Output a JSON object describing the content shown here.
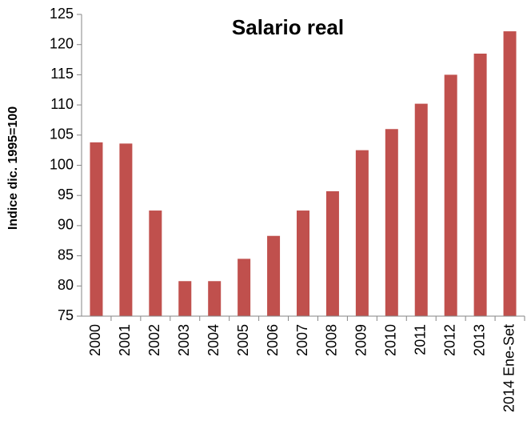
{
  "chart_data": {
    "type": "bar",
    "title": "Salario real",
    "y_label": "Indice dic. 1995=100",
    "categories": [
      "2000",
      "2001",
      "2002",
      "2003",
      "2004",
      "2005",
      "2006",
      "2007",
      "2008",
      "2009",
      "2010",
      "2011",
      "2012",
      "2013",
      "2014 Ene-Set"
    ],
    "values": [
      103.8,
      103.6,
      92.5,
      80.8,
      80.8,
      84.5,
      88.3,
      92.5,
      95.7,
      102.5,
      106.0,
      110.2,
      115.0,
      118.5,
      122.2
    ],
    "color": "#c0504d",
    "ylim": [
      75,
      125
    ],
    "yticks": [
      75,
      80,
      85,
      90,
      95,
      100,
      105,
      110,
      115,
      120,
      125
    ],
    "grid": false
  }
}
